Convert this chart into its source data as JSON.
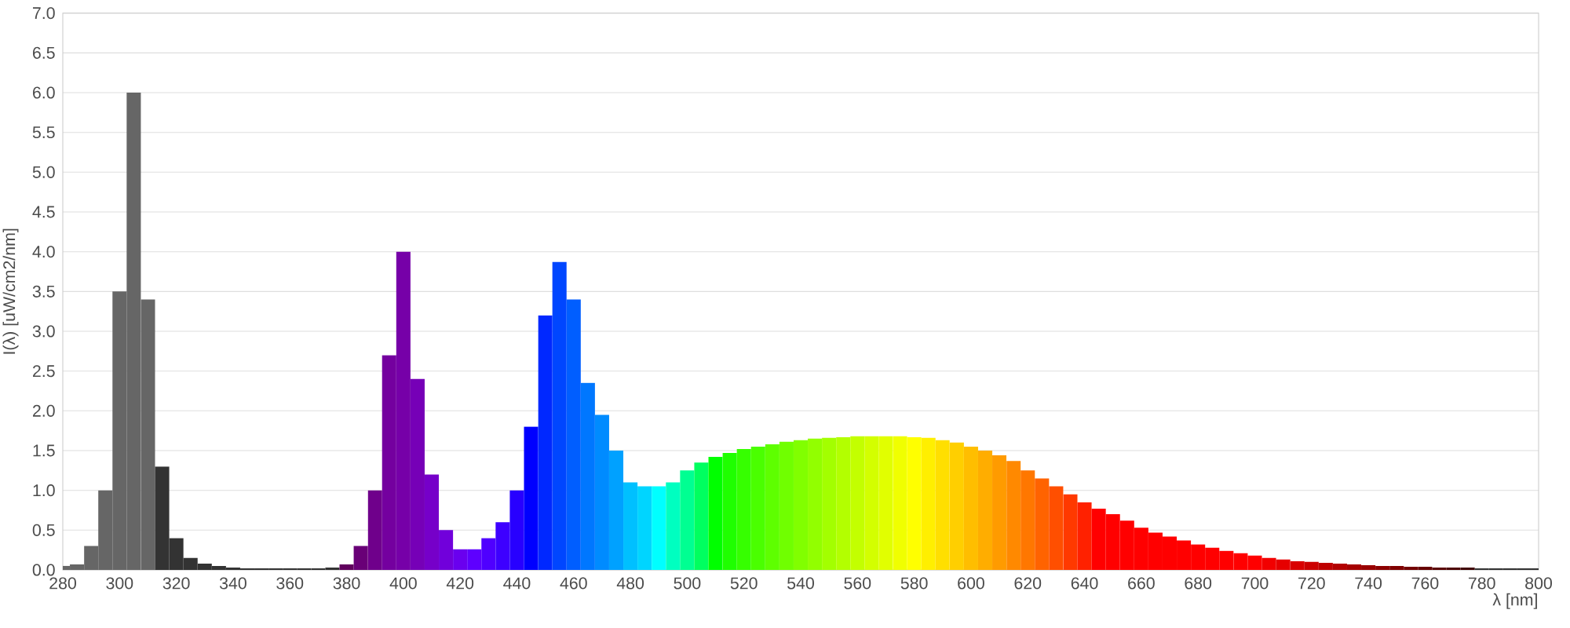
{
  "chart_data": {
    "type": "bar",
    "xlabel": "λ [nm]",
    "ylabel": "I(λ)  [uW/cm2/nm]",
    "x": [
      280,
      285,
      290,
      295,
      300,
      305,
      310,
      315,
      320,
      325,
      330,
      335,
      340,
      345,
      350,
      355,
      360,
      365,
      370,
      375,
      380,
      385,
      390,
      395,
      400,
      405,
      410,
      415,
      420,
      425,
      430,
      435,
      440,
      445,
      450,
      455,
      460,
      465,
      470,
      475,
      480,
      485,
      490,
      495,
      500,
      505,
      510,
      515,
      520,
      525,
      530,
      535,
      540,
      545,
      550,
      555,
      560,
      565,
      570,
      575,
      580,
      585,
      590,
      595,
      600,
      605,
      610,
      615,
      620,
      625,
      630,
      635,
      640,
      645,
      650,
      655,
      660,
      665,
      670,
      675,
      680,
      685,
      690,
      695,
      700,
      705,
      710,
      715,
      720,
      725,
      730,
      735,
      740,
      745,
      750,
      755,
      760,
      765,
      770,
      775,
      780,
      785,
      790,
      795,
      800
    ],
    "values": [
      0.05,
      0.07,
      0.3,
      1.0,
      3.5,
      6.0,
      3.4,
      1.3,
      0.4,
      0.15,
      0.08,
      0.05,
      0.03,
      0.02,
      0.02,
      0.02,
      0.02,
      0.02,
      0.02,
      0.03,
      0.07,
      0.3,
      1.0,
      2.7,
      4.0,
      2.4,
      1.2,
      0.5,
      0.26,
      0.26,
      0.4,
      0.6,
      1.0,
      1.8,
      3.2,
      3.87,
      3.4,
      2.35,
      1.95,
      1.5,
      1.1,
      1.05,
      1.05,
      1.1,
      1.25,
      1.35,
      1.42,
      1.47,
      1.52,
      1.55,
      1.58,
      1.61,
      1.63,
      1.65,
      1.66,
      1.67,
      1.68,
      1.68,
      1.68,
      1.68,
      1.67,
      1.66,
      1.63,
      1.6,
      1.55,
      1.5,
      1.44,
      1.37,
      1.25,
      1.15,
      1.05,
      0.95,
      0.85,
      0.77,
      0.7,
      0.62,
      0.53,
      0.47,
      0.42,
      0.37,
      0.32,
      0.28,
      0.24,
      0.21,
      0.18,
      0.15,
      0.13,
      0.11,
      0.1,
      0.09,
      0.08,
      0.07,
      0.06,
      0.05,
      0.05,
      0.04,
      0.04,
      0.03,
      0.03,
      0.03,
      0.02,
      0.02,
      0.02,
      0.02,
      0.02
    ],
    "colors": [
      "#666666",
      "#666666",
      "#666666",
      "#666666",
      "#666666",
      "#666666",
      "#666666",
      "#333333",
      "#333333",
      "#333333",
      "#333333",
      "#333333",
      "#333333",
      "#333333",
      "#333333",
      "#333333",
      "#333333",
      "#333333",
      "#333333",
      "#333333",
      "#61005e",
      "#690077",
      "#6f008b",
      "#74009f",
      "#7600a8",
      "#7600b7",
      "#7600c9",
      "#7100db",
      "#6a00ef",
      "#5e00ff",
      "#4f00ff",
      "#3d00ff",
      "#2800ff",
      "#0000ff",
      "#0028ff",
      "#0046ff",
      "#005eff",
      "#0077ff",
      "#008bff",
      "#00a1ff",
      "#00c0ff",
      "#00d5ff",
      "#00ffff",
      "#00ffc0",
      "#00ff92",
      "#00ff5f",
      "#00ff00",
      "#1fff00",
      "#36ff00",
      "#4aff00",
      "#5eff00",
      "#70ff00",
      "#81ff00",
      "#92ff00",
      "#a3ff00",
      "#b3ff00",
      "#c3ff00",
      "#d3ff00",
      "#e1ff00",
      "#f0ff00",
      "#ffff00",
      "#ffef00",
      "#ffdf00",
      "#ffcf00",
      "#ffbe00",
      "#ffad00",
      "#ff9b00",
      "#ff8900",
      "#ff7700",
      "#ff6300",
      "#ff4f00",
      "#ff3900",
      "#ff2100",
      "#ff0000",
      "#ff0000",
      "#ff0000",
      "#ff0000",
      "#ff0000",
      "#ff0000",
      "#ff0000",
      "#ff0000",
      "#ff0000",
      "#ff0000",
      "#ff0000",
      "#ff0000",
      "#f20000",
      "#e60000",
      "#d90000",
      "#cc0000",
      "#bf0000",
      "#b30000",
      "#a60000",
      "#990000",
      "#8c0000",
      "#800000",
      "#730000",
      "#660000",
      "#5a0000",
      "#4d0000",
      "#400000",
      "#333333",
      "#333333",
      "#333333",
      "#333333",
      "#333333"
    ],
    "xlim": [
      280,
      800
    ],
    "ylim": [
      0,
      7
    ],
    "xticks": [
      280,
      300,
      320,
      340,
      360,
      380,
      400,
      420,
      440,
      460,
      480,
      500,
      520,
      540,
      560,
      580,
      600,
      620,
      640,
      660,
      680,
      700,
      720,
      740,
      760,
      780,
      800
    ],
    "yticks": [
      {
        "value": 0,
        "label": "0.0"
      },
      {
        "value": 0.5,
        "label": "0.5"
      },
      {
        "value": 1,
        "label": "1.0"
      },
      {
        "value": 1.5,
        "label": "1.5"
      },
      {
        "value": 2,
        "label": "2.0"
      },
      {
        "value": 2.5,
        "label": "2.5"
      },
      {
        "value": 3,
        "label": "3.0"
      },
      {
        "value": 3.5,
        "label": "3.5"
      },
      {
        "value": 4,
        "label": "4.0"
      },
      {
        "value": 4.5,
        "label": "4.5"
      },
      {
        "value": 5,
        "label": "5.0"
      },
      {
        "value": 5.5,
        "label": "5.5"
      },
      {
        "value": 6,
        "label": "6.0"
      },
      {
        "value": 6.5,
        "label": "6.5"
      },
      {
        "value": 7,
        "label": "7.0"
      }
    ],
    "grid": "y"
  }
}
